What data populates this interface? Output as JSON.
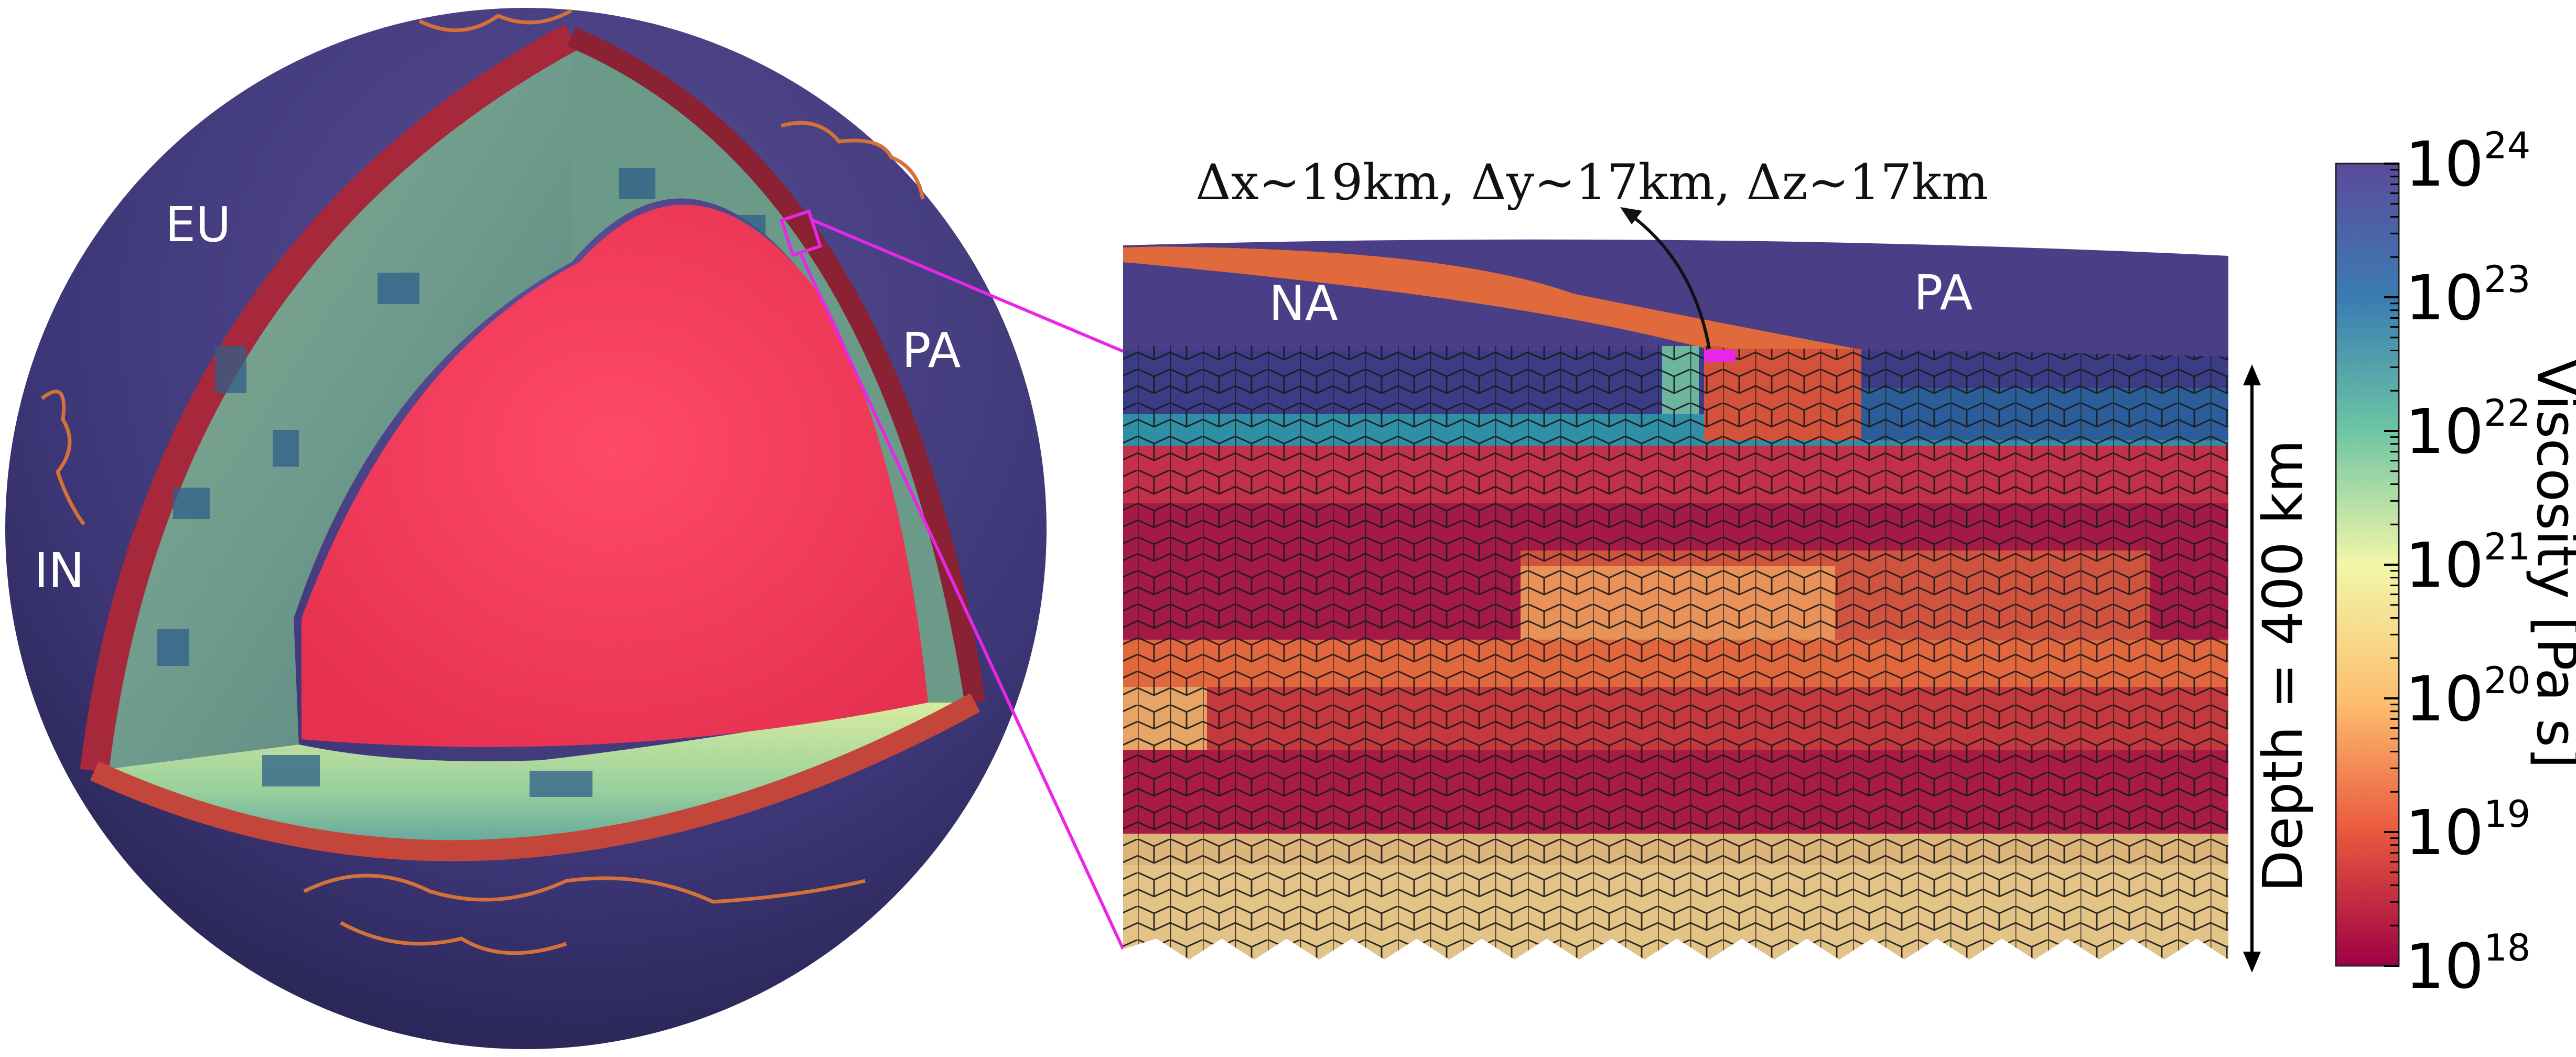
{
  "globe": {
    "plate_labels": [
      "EU",
      "PA",
      "IN"
    ]
  },
  "section": {
    "plate_labels": [
      "NA",
      "PA"
    ],
    "resolution_label": "Δx~19km, Δy~17km, Δz~17km",
    "depth_label": "Depth = 400 km"
  },
  "colorbar": {
    "title": "Viscosity [Pa s]",
    "tick_base": "10",
    "tick_exponents": [
      "24",
      "23",
      "22",
      "21",
      "20",
      "19",
      "18"
    ],
    "colors": {
      "c24": "#5b4a9b",
      "c23": "#3b7db3",
      "c22": "#6cc4a4",
      "c21": "#f2f7a8",
      "c20": "#fdbe6f",
      "c19": "#ea5a3f",
      "c18": "#9e0142"
    }
  },
  "colors": {
    "space": "#3f3877",
    "core": "#f73a5c",
    "highlight": "#e826e8"
  }
}
